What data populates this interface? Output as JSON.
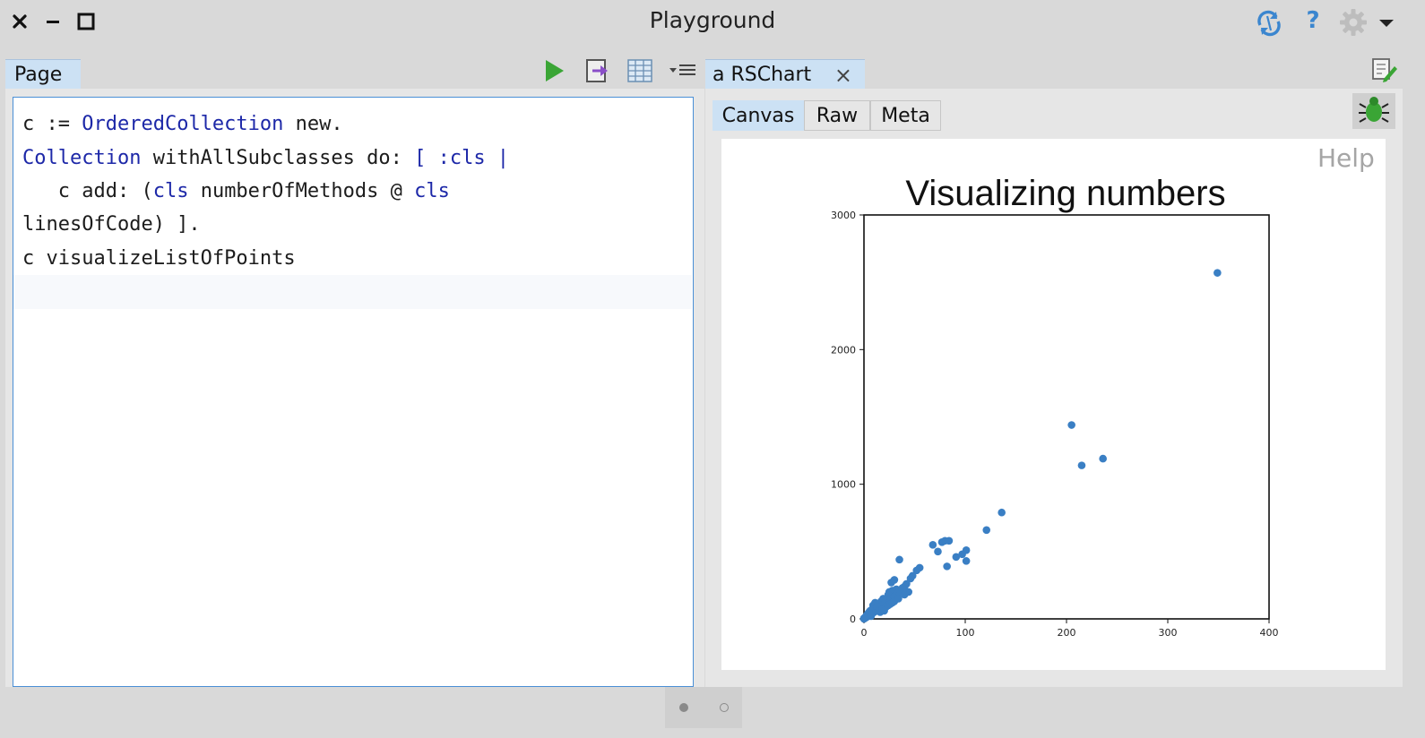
{
  "window": {
    "title": "Playground",
    "close_glyph": "×",
    "minimize_glyph": "–",
    "maximize_glyph": "□"
  },
  "toolbar_right": {
    "help_glyph": "?",
    "icons": [
      "sync-icon",
      "help-icon",
      "gear-icon",
      "chevron-down-icon"
    ]
  },
  "left_pane": {
    "tab_label": "Page",
    "toolbar_icons": [
      "play-icon",
      "export-icon",
      "grid-icon",
      "menu-icon"
    ],
    "code_lines": [
      "c := OrderedCollection new.",
      "Collection withAllSubclasses do: [ :cls |",
      "   c add: (cls numberOfMethods @ cls",
      "linesOfCode) ].",
      "c visualizeListOfPoints"
    ]
  },
  "right_pane": {
    "tab_label": "a RSChart",
    "tab_close_glyph": "×",
    "subtabs": [
      "Canvas",
      "Raw",
      "Meta"
    ],
    "active_subtab": "Canvas",
    "help_label": "Help",
    "icons": [
      "edit-page-icon",
      "bug-icon"
    ]
  },
  "pager": {
    "dots": 2,
    "active": 0
  },
  "colors": {
    "accent": "#4a8fd6",
    "tab_active": "#cce1f4",
    "code_keyword": "#1d28a8",
    "point": "#3a7fc4",
    "play": "#3aa535"
  },
  "chart_data": {
    "type": "scatter",
    "title": "Visualizing numbers",
    "xlabel": "",
    "ylabel": "",
    "xlim": [
      0,
      400
    ],
    "ylim": [
      0,
      3000
    ],
    "xticks": [
      0,
      100,
      200,
      300,
      400
    ],
    "yticks": [
      0,
      1000,
      2000,
      3000
    ],
    "grid": false,
    "points": [
      [
        349,
        2570
      ],
      [
        205,
        1440
      ],
      [
        236,
        1190
      ],
      [
        215,
        1140
      ],
      [
        136,
        790
      ],
      [
        121,
        660
      ],
      [
        101,
        510
      ],
      [
        97,
        480
      ],
      [
        101,
        430
      ],
      [
        91,
        460
      ],
      [
        80,
        580
      ],
      [
        77,
        570
      ],
      [
        68,
        550
      ],
      [
        84,
        580
      ],
      [
        82,
        390
      ],
      [
        73,
        500
      ],
      [
        35,
        440
      ],
      [
        55,
        380
      ],
      [
        52,
        360
      ],
      [
        48,
        320
      ],
      [
        46,
        300
      ],
      [
        42,
        260
      ],
      [
        40,
        240
      ],
      [
        30,
        290
      ],
      [
        27,
        270
      ],
      [
        32,
        220
      ],
      [
        28,
        210
      ],
      [
        25,
        200
      ],
      [
        24,
        180
      ],
      [
        38,
        230
      ],
      [
        36,
        200
      ],
      [
        33,
        190
      ],
      [
        31,
        170
      ],
      [
        29,
        160
      ],
      [
        26,
        150
      ],
      [
        23,
        140
      ],
      [
        22,
        130
      ],
      [
        21,
        120
      ],
      [
        20,
        110
      ],
      [
        18,
        100
      ],
      [
        17,
        95
      ],
      [
        16,
        90
      ],
      [
        15,
        80
      ],
      [
        14,
        70
      ],
      [
        13,
        65
      ],
      [
        12,
        60
      ],
      [
        11,
        55
      ],
      [
        10,
        50
      ],
      [
        9,
        45
      ],
      [
        8,
        40
      ],
      [
        7,
        35
      ],
      [
        6,
        30
      ],
      [
        5,
        25
      ],
      [
        4,
        20
      ],
      [
        3,
        15
      ],
      [
        2,
        10
      ],
      [
        1,
        5
      ],
      [
        0,
        0
      ],
      [
        19,
        150
      ],
      [
        17,
        130
      ],
      [
        14,
        110
      ],
      [
        12,
        95
      ],
      [
        10,
        80
      ],
      [
        8,
        70
      ],
      [
        22,
        90
      ],
      [
        24,
        100
      ],
      [
        26,
        110
      ],
      [
        28,
        120
      ],
      [
        30,
        130
      ],
      [
        9,
        100
      ],
      [
        11,
        120
      ],
      [
        13,
        90
      ],
      [
        15,
        60
      ],
      [
        16,
        50
      ],
      [
        18,
        70
      ],
      [
        44,
        200
      ],
      [
        40,
        180
      ],
      [
        34,
        150
      ],
      [
        20,
        60
      ],
      [
        6,
        60
      ],
      [
        4,
        40
      ],
      [
        3,
        30
      ],
      [
        2,
        20
      ],
      [
        5,
        50
      ],
      [
        7,
        20
      ],
      [
        1,
        10
      ],
      [
        0,
        5
      ]
    ]
  }
}
